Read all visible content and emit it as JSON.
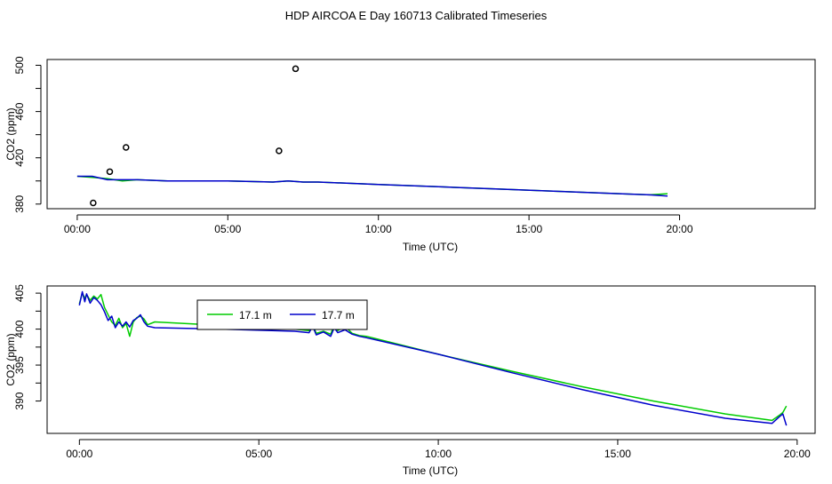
{
  "page": {
    "title": "HDP AIRCOA E  Day 160713  Calibrated Timeseries"
  },
  "colors": {
    "series_17_1": "#00cc00",
    "series_17_7": "#0000cc",
    "points": "#000000"
  },
  "chart_data": [
    {
      "type": "line",
      "title": "",
      "xlabel": "Time (UTC)",
      "ylabel": "CO2 (ppm)",
      "xlim": [
        -1.0,
        24.5
      ],
      "ylim": [
        376,
        505
      ],
      "xticks": [
        0,
        5,
        10,
        15,
        20
      ],
      "xtick_labels": [
        "00:00",
        "05:00",
        "10:00",
        "15:00",
        "20:00"
      ],
      "yticks": [
        380,
        420,
        460,
        500
      ],
      "ytick_labels": [
        "380",
        "420",
        "460",
        "500"
      ],
      "points": [
        {
          "x": 0.53,
          "y": 381
        },
        {
          "x": 1.08,
          "y": 408
        },
        {
          "x": 1.62,
          "y": 429
        },
        {
          "x": 6.7,
          "y": 426
        },
        {
          "x": 7.25,
          "y": 497
        }
      ],
      "series": [
        {
          "color": "#00cc00",
          "x": [
            0.0,
            0.5,
            1.0,
            1.5,
            2.0,
            3.0,
            5.0,
            6.5,
            7.0,
            7.5,
            8.0,
            10.0,
            12.0,
            14.0,
            16.0,
            18.0,
            19.0,
            19.6
          ],
          "y": [
            404,
            403,
            402,
            400,
            401,
            400,
            400,
            399,
            400,
            399,
            399,
            397,
            395,
            393,
            391,
            389,
            388,
            389
          ]
        },
        {
          "color": "#0000cc",
          "x": [
            0.0,
            0.5,
            1.0,
            1.5,
            2.0,
            3.0,
            5.0,
            6.5,
            7.0,
            7.5,
            8.0,
            10.0,
            12.0,
            14.0,
            16.0,
            18.0,
            19.0,
            19.6
          ],
          "y": [
            404,
            404,
            401,
            401,
            401,
            400,
            400,
            399,
            400,
            399,
            399,
            397,
            395,
            393,
            391,
            389,
            388,
            387
          ]
        }
      ]
    },
    {
      "type": "line",
      "title": "",
      "xlabel": "Time (UTC)",
      "ylabel": "CO2 (ppm)",
      "xlim": [
        -0.9,
        20.5
      ],
      "ylim": [
        385.5,
        406.0
      ],
      "xticks": [
        0,
        5,
        10,
        15,
        20
      ],
      "xtick_labels": [
        "00:00",
        "05:00",
        "10:00",
        "15:00",
        "20:00"
      ],
      "yticks": [
        390,
        395,
        400,
        405
      ],
      "ytick_labels": [
        "390",
        "395",
        "400",
        "405"
      ],
      "legend": {
        "placement": "top-left"
      },
      "series": [
        {
          "name": "17.1 m",
          "color": "#00cc00",
          "x": [
            0.0,
            0.08,
            0.15,
            0.2,
            0.3,
            0.4,
            0.5,
            0.6,
            0.7,
            0.8,
            0.9,
            1.0,
            1.1,
            1.2,
            1.3,
            1.4,
            1.5,
            1.6,
            1.7,
            1.8,
            1.9,
            2.1,
            4.0,
            6.0,
            6.4,
            6.5,
            6.6,
            6.8,
            7.0,
            7.1,
            7.2,
            7.4,
            7.6,
            7.8,
            8.0,
            10.0,
            12.0,
            14.0,
            16.0,
            18.0,
            19.3,
            19.5,
            19.6,
            19.7
          ],
          "y": [
            403.5,
            405.0,
            404.3,
            404.8,
            404.0,
            404.6,
            404.2,
            404.8,
            403.0,
            402.0,
            401.0,
            400.5,
            401.5,
            400.2,
            400.8,
            399.0,
            401.0,
            401.6,
            401.8,
            401.4,
            400.6,
            401.0,
            400.5,
            400.0,
            399.8,
            400.6,
            399.4,
            399.7,
            399.3,
            400.6,
            399.8,
            400.4,
            399.4,
            399.1,
            399.0,
            396.5,
            394.2,
            392.0,
            390.0,
            388.2,
            387.3,
            388.0,
            388.4,
            389.3
          ]
        },
        {
          "name": "17.7 m",
          "color": "#0000cc",
          "x": [
            0.0,
            0.08,
            0.15,
            0.2,
            0.3,
            0.4,
            0.5,
            0.6,
            0.7,
            0.8,
            0.9,
            1.0,
            1.1,
            1.2,
            1.3,
            1.4,
            1.5,
            1.6,
            1.7,
            1.8,
            1.9,
            2.1,
            4.0,
            6.0,
            6.4,
            6.5,
            6.6,
            6.8,
            7.0,
            7.1,
            7.2,
            7.4,
            7.6,
            7.8,
            8.0,
            10.0,
            12.0,
            14.0,
            16.0,
            18.0,
            19.3,
            19.5,
            19.6,
            19.7
          ],
          "y": [
            403.3,
            405.2,
            403.8,
            404.9,
            403.6,
            404.4,
            404.0,
            403.4,
            402.4,
            401.2,
            401.8,
            400.2,
            401.0,
            400.4,
            401.0,
            400.3,
            401.2,
            401.5,
            402.0,
            401.0,
            400.4,
            400.2,
            400.0,
            399.7,
            399.5,
            400.4,
            399.2,
            399.6,
            399.0,
            400.2,
            399.5,
            399.9,
            399.3,
            399.0,
            398.8,
            396.5,
            394.0,
            391.6,
            389.4,
            387.6,
            386.9,
            387.8,
            388.2,
            386.6
          ]
        }
      ]
    }
  ]
}
